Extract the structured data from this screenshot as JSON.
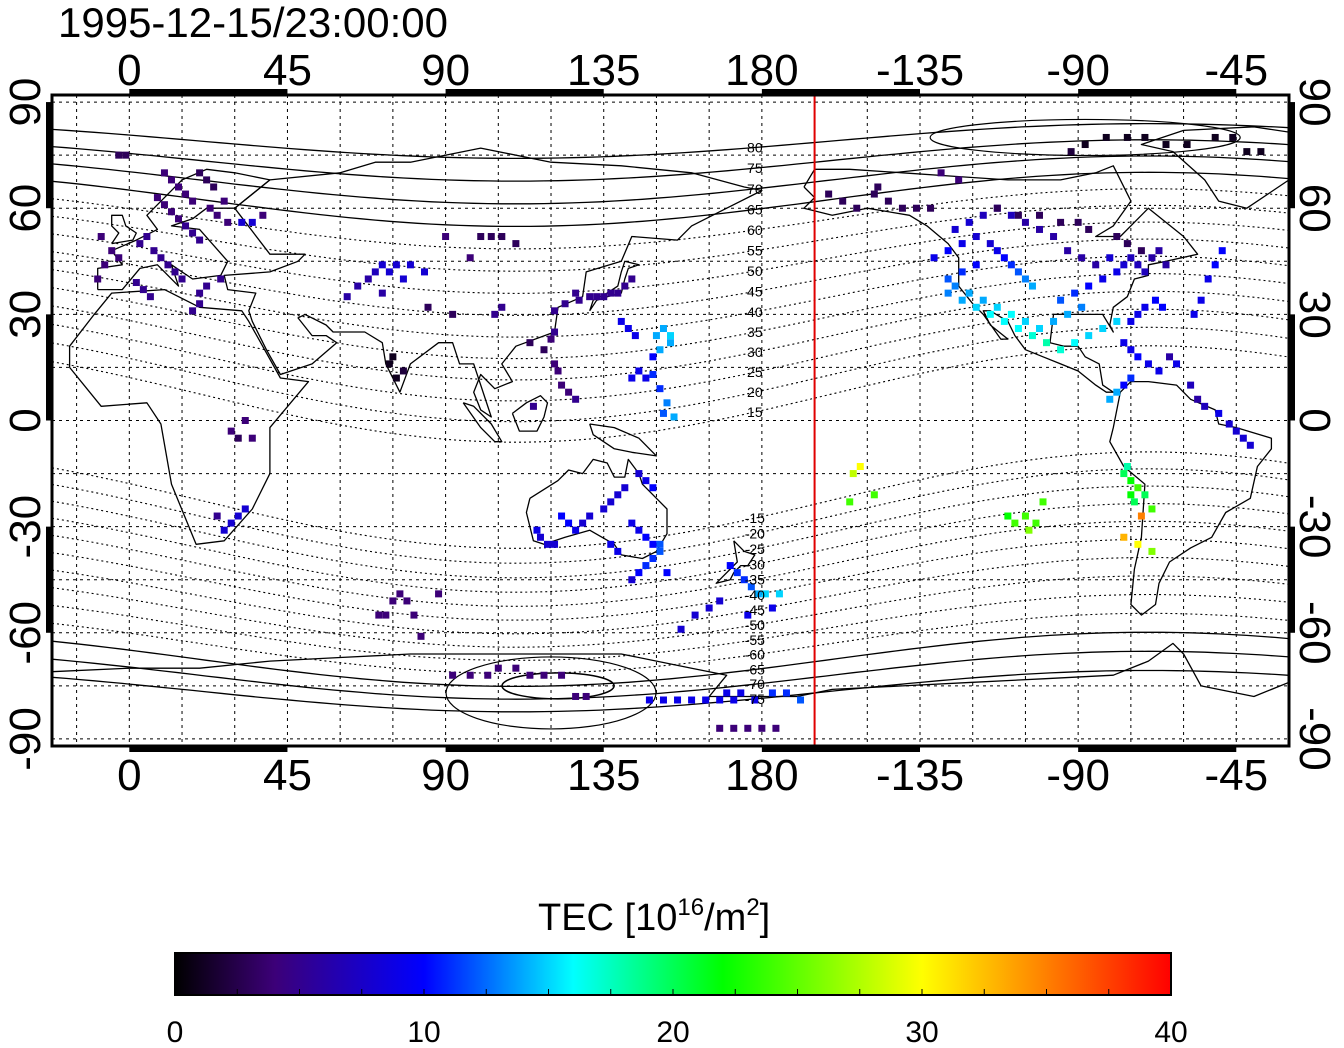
{
  "title": "1995-12-15/23:00:00",
  "map": {
    "lon_ticks_top": [
      "0",
      "45",
      "90",
      "135",
      "180",
      "-135",
      "-90",
      "-45"
    ],
    "lon_ticks_bottom": [
      "0",
      "45",
      "90",
      "135",
      "180",
      "-135",
      "-90",
      "-45"
    ],
    "lat_ticks_left": [
      "90",
      "60",
      "30",
      "0",
      "-30",
      "-60",
      "-90"
    ],
    "lat_ticks_right": [
      "90",
      "60",
      "30",
      "0",
      "-30",
      "-60",
      "-90"
    ],
    "lon_range": [
      -22,
      330
    ],
    "lat_range": [
      -92,
      92
    ],
    "grid_step_degrees": 15,
    "grid": true,
    "midnight_line_lon": 195,
    "midnight_line_color": "#e00000",
    "magnetic_latitude_labels_north": [
      "80",
      "75",
      "70",
      "65",
      "60",
      "55",
      "50",
      "45",
      "40",
      "35",
      "30",
      "25",
      "20",
      "15"
    ],
    "magnetic_latitude_labels_south": [
      "-15",
      "-20",
      "-25",
      "-30",
      "-35",
      "-40",
      "-45",
      "-50",
      "-55",
      "-60",
      "-65",
      "-70",
      "-75"
    ]
  },
  "colorbar": {
    "title_prefix": "TEC  [10",
    "title_sup1": "16",
    "title_mid": "/m",
    "title_sup2": "2",
    "title_suffix": "]",
    "min": 0,
    "max": 40,
    "tick_labels": [
      "0",
      "10",
      "20",
      "30",
      "40"
    ],
    "stops": [
      "#000000",
      "#3c0078",
      "#0000ff",
      "#00ffff",
      "#00ff00",
      "#ffff00",
      "#ff0000"
    ]
  },
  "chart_data": {
    "type": "scatter",
    "x_units": "longitude (degrees east, 0–360)",
    "y_units": "latitude (degrees)",
    "value_units": "TECU",
    "points": [
      [
        -3,
        75,
        3
      ],
      [
        -1,
        75,
        3
      ],
      [
        10,
        70,
        4
      ],
      [
        12,
        68,
        4
      ],
      [
        14,
        66,
        4
      ],
      [
        16,
        64,
        4
      ],
      [
        18,
        62,
        4
      ],
      [
        20,
        70,
        3
      ],
      [
        22,
        68,
        3
      ],
      [
        24,
        66,
        3
      ],
      [
        8,
        63,
        4
      ],
      [
        10,
        61,
        4
      ],
      [
        12,
        59,
        4
      ],
      [
        14,
        57,
        4
      ],
      [
        16,
        55,
        5
      ],
      [
        18,
        53,
        5
      ],
      [
        20,
        51,
        5
      ],
      [
        5,
        52,
        5
      ],
      [
        3,
        50,
        5
      ],
      [
        7,
        48,
        5
      ],
      [
        9,
        46,
        5
      ],
      [
        11,
        44,
        5
      ],
      [
        13,
        42,
        5
      ],
      [
        15,
        40,
        5
      ],
      [
        -5,
        48,
        4
      ],
      [
        -3,
        46,
        4
      ],
      [
        -7,
        44,
        4
      ],
      [
        -9,
        40,
        4
      ],
      [
        2,
        39,
        5
      ],
      [
        4,
        37,
        5
      ],
      [
        6,
        35,
        5
      ],
      [
        20,
        36,
        5
      ],
      [
        22,
        38,
        5
      ],
      [
        26,
        40,
        5
      ],
      [
        28,
        56,
        4
      ],
      [
        32,
        56,
        8
      ],
      [
        35,
        56,
        8
      ],
      [
        38,
        58,
        4
      ],
      [
        -8,
        52,
        4
      ],
      [
        23,
        60,
        4
      ],
      [
        25,
        58,
        4
      ],
      [
        27,
        62,
        4
      ],
      [
        20,
        33,
        5
      ],
      [
        18,
        31,
        5
      ],
      [
        68,
        40,
        6
      ],
      [
        70,
        42,
        7
      ],
      [
        72,
        44,
        8
      ],
      [
        74,
        42,
        8
      ],
      [
        76,
        44,
        8
      ],
      [
        78,
        40,
        8
      ],
      [
        80,
        44,
        8
      ],
      [
        84,
        42,
        8
      ],
      [
        62,
        35,
        6
      ],
      [
        65,
        38,
        6
      ],
      [
        72,
        36,
        6
      ],
      [
        100,
        52,
        3
      ],
      [
        103,
        52,
        3
      ],
      [
        106,
        52,
        3
      ],
      [
        110,
        50,
        3
      ],
      [
        97,
        46,
        4
      ],
      [
        90,
        52,
        4
      ],
      [
        85,
        32,
        3
      ],
      [
        92,
        30,
        3
      ],
      [
        75,
        18,
        1
      ],
      [
        76,
        12,
        1
      ],
      [
        78,
        14,
        2
      ],
      [
        74,
        16,
        1
      ],
      [
        121,
        31,
        5
      ],
      [
        124,
        33,
        5
      ],
      [
        127,
        36,
        5
      ],
      [
        128,
        34,
        5
      ],
      [
        131,
        35,
        5
      ],
      [
        133,
        35,
        5
      ],
      [
        135,
        35,
        5
      ],
      [
        137,
        36,
        5
      ],
      [
        139,
        36,
        5
      ],
      [
        141,
        38,
        5
      ],
      [
        143,
        40,
        5
      ],
      [
        120,
        23,
        4
      ],
      [
        121,
        25,
        5
      ],
      [
        121,
        16,
        4
      ],
      [
        122,
        14,
        4
      ],
      [
        123,
        10,
        4
      ],
      [
        125,
        8,
        4
      ],
      [
        127,
        6,
        5
      ],
      [
        115,
        4,
        5
      ],
      [
        104,
        30,
        5
      ],
      [
        106,
        32,
        5
      ],
      [
        118,
        20,
        3
      ],
      [
        114,
        22,
        3
      ],
      [
        140,
        28,
        9
      ],
      [
        142,
        26,
        9
      ],
      [
        144,
        24,
        9
      ],
      [
        145,
        14,
        9
      ],
      [
        143,
        12,
        9
      ],
      [
        147,
        12,
        9
      ],
      [
        149,
        18,
        10
      ],
      [
        151,
        20,
        14
      ],
      [
        150,
        24,
        14
      ],
      [
        152,
        26,
        14
      ],
      [
        154,
        24,
        15
      ],
      [
        154,
        22,
        14
      ],
      [
        149,
        13,
        11
      ],
      [
        151,
        9,
        11
      ],
      [
        153,
        5,
        13
      ],
      [
        155,
        1,
        14
      ],
      [
        152,
        2,
        12
      ],
      [
        145,
        -15,
        8
      ],
      [
        147,
        -17,
        9
      ],
      [
        149,
        -19,
        10
      ],
      [
        141,
        -19,
        8
      ],
      [
        139,
        -21,
        8
      ],
      [
        137,
        -23,
        8
      ],
      [
        135,
        -25,
        8
      ],
      [
        131,
        -27,
        8
      ],
      [
        129,
        -29,
        8
      ],
      [
        127,
        -31,
        9
      ],
      [
        125,
        -29,
        10
      ],
      [
        123,
        -27,
        10
      ],
      [
        143,
        -29,
        9
      ],
      [
        145,
        -31,
        9
      ],
      [
        147,
        -33,
        10
      ],
      [
        149,
        -35,
        10
      ],
      [
        151,
        -35,
        12
      ],
      [
        151,
        -37,
        12
      ],
      [
        149,
        -39,
        11
      ],
      [
        147,
        -41,
        11
      ],
      [
        145,
        -43,
        10
      ],
      [
        153,
        -43,
        10
      ],
      [
        117,
        -33,
        8
      ],
      [
        116,
        -31,
        9
      ],
      [
        119,
        -35,
        8
      ],
      [
        121,
        -35,
        8
      ],
      [
        137,
        -35,
        9
      ],
      [
        139,
        -37,
        9
      ],
      [
        143,
        -45,
        8
      ],
      [
        171,
        -41,
        10
      ],
      [
        173,
        -43,
        11
      ],
      [
        175,
        -45,
        11
      ],
      [
        177,
        -47,
        12
      ],
      [
        179,
        -49,
        14
      ],
      [
        181,
        -49,
        15
      ],
      [
        185,
        -49,
        15
      ],
      [
        168,
        -51,
        8
      ],
      [
        165,
        -53,
        8
      ],
      [
        161,
        -55,
        8
      ],
      [
        157,
        -59,
        8
      ],
      [
        183,
        -53,
        9
      ],
      [
        176,
        -55,
        9
      ],
      [
        75,
        -51,
        4
      ],
      [
        77,
        -49,
        4
      ],
      [
        79,
        -51,
        4
      ],
      [
        73,
        -55,
        4
      ],
      [
        71,
        -55,
        4
      ],
      [
        81,
        -55,
        4
      ],
      [
        83,
        -61,
        4
      ],
      [
        88,
        -49,
        4
      ],
      [
        33,
        -25,
        8
      ],
      [
        31,
        -27,
        8
      ],
      [
        29,
        -29,
        8
      ],
      [
        27,
        -31,
        8
      ],
      [
        25,
        -27,
        5
      ],
      [
        29,
        -3,
        4
      ],
      [
        33,
        0,
        4
      ],
      [
        31,
        -5,
        3
      ],
      [
        35,
        -5,
        4
      ],
      [
        92,
        -72,
        4
      ],
      [
        97,
        -72,
        4
      ],
      [
        102,
        -72,
        4
      ],
      [
        105,
        -70,
        4
      ],
      [
        110,
        -70,
        4
      ],
      [
        114,
        -72,
        4
      ],
      [
        118,
        -72,
        4
      ],
      [
        123,
        -72,
        4
      ],
      [
        127,
        -78,
        4
      ],
      [
        130,
        -78,
        4
      ],
      [
        148,
        -79,
        9
      ],
      [
        152,
        -79,
        9
      ],
      [
        156,
        -79,
        9
      ],
      [
        160,
        -79,
        9
      ],
      [
        164,
        -79,
        9
      ],
      [
        168,
        -79,
        9
      ],
      [
        172,
        -79,
        9
      ],
      [
        178,
        -79,
        9
      ],
      [
        183,
        -77,
        11
      ],
      [
        187,
        -77,
        11
      ],
      [
        191,
        -79,
        12
      ],
      [
        168,
        -87,
        4
      ],
      [
        172,
        -87,
        4
      ],
      [
        176,
        -87,
        4
      ],
      [
        180,
        -87,
        4
      ],
      [
        184,
        -87,
        4
      ],
      [
        170,
        -77,
        9
      ],
      [
        174,
        -77,
        9
      ],
      [
        206,
        -15,
        28
      ],
      [
        208,
        -13,
        30
      ],
      [
        205,
        -23,
        24
      ],
      [
        212,
        -21,
        24
      ],
      [
        260,
        -23,
        24
      ],
      [
        258,
        -29,
        24
      ],
      [
        255,
        -27,
        24
      ],
      [
        252,
        -29,
        24
      ],
      [
        256,
        -31,
        26
      ],
      [
        250,
        -27,
        22
      ],
      [
        283,
        -15,
        20
      ],
      [
        285,
        -17,
        22
      ],
      [
        287,
        -19,
        24
      ],
      [
        285,
        -21,
        22
      ],
      [
        289,
        -21,
        20
      ],
      [
        291,
        -25,
        24
      ],
      [
        288,
        -27,
        35
      ],
      [
        283,
        -33,
        33
      ],
      [
        287,
        -35,
        30
      ],
      [
        291,
        -37,
        26
      ],
      [
        284,
        -13,
        18
      ],
      [
        286,
        -23,
        20
      ],
      [
        245,
        50,
        8
      ],
      [
        247,
        48,
        9
      ],
      [
        249,
        46,
        10
      ],
      [
        251,
        44,
        11
      ],
      [
        253,
        42,
        12
      ],
      [
        255,
        40,
        13
      ],
      [
        257,
        38,
        14
      ],
      [
        241,
        44,
        10
      ],
      [
        237,
        42,
        11
      ],
      [
        233,
        40,
        12
      ],
      [
        235,
        38,
        13
      ],
      [
        239,
        36,
        14
      ],
      [
        243,
        34,
        14
      ],
      [
        247,
        32,
        15
      ],
      [
        251,
        30,
        16
      ],
      [
        255,
        28,
        15
      ],
      [
        259,
        26,
        15
      ],
      [
        263,
        28,
        14
      ],
      [
        267,
        30,
        14
      ],
      [
        271,
        32,
        13
      ],
      [
        265,
        34,
        12
      ],
      [
        269,
        36,
        11
      ],
      [
        273,
        38,
        10
      ],
      [
        277,
        40,
        9
      ],
      [
        281,
        42,
        9
      ],
      [
        283,
        44,
        8
      ],
      [
        279,
        46,
        8
      ],
      [
        285,
        46,
        7
      ],
      [
        287,
        44,
        7
      ],
      [
        289,
        42,
        7
      ],
      [
        291,
        46,
        6
      ],
      [
        293,
        48,
        6
      ],
      [
        295,
        44,
        6
      ],
      [
        241,
        52,
        8
      ],
      [
        237,
        50,
        9
      ],
      [
        233,
        48,
        10
      ],
      [
        229,
        46,
        9
      ],
      [
        235,
        54,
        8
      ],
      [
        239,
        56,
        8
      ],
      [
        243,
        58,
        7
      ],
      [
        247,
        60,
        6
      ],
      [
        251,
        58,
        7
      ],
      [
        255,
        56,
        6
      ],
      [
        259,
        54,
        6
      ],
      [
        263,
        52,
        6
      ],
      [
        267,
        48,
        6
      ],
      [
        271,
        46,
        6
      ],
      [
        275,
        44,
        6
      ],
      [
        233,
        36,
        13
      ],
      [
        237,
        34,
        14
      ],
      [
        241,
        32,
        15
      ],
      [
        245,
        30,
        16
      ],
      [
        249,
        28,
        16
      ],
      [
        253,
        26,
        16
      ],
      [
        257,
        24,
        17
      ],
      [
        261,
        22,
        18
      ],
      [
        265,
        20,
        17
      ],
      [
        269,
        22,
        16
      ],
      [
        273,
        24,
        15
      ],
      [
        277,
        26,
        15
      ],
      [
        281,
        28,
        15
      ],
      [
        285,
        28,
        9
      ],
      [
        287,
        30,
        9
      ],
      [
        289,
        32,
        9
      ],
      [
        292,
        34,
        10
      ],
      [
        294,
        32,
        10
      ],
      [
        283,
        22,
        9
      ],
      [
        285,
        20,
        9
      ],
      [
        287,
        18,
        10
      ],
      [
        290,
        16,
        9
      ],
      [
        293,
        14,
        9
      ],
      [
        283,
        10,
        10
      ],
      [
        285,
        12,
        11
      ],
      [
        281,
        8,
        14
      ],
      [
        279,
        6,
        14
      ],
      [
        296,
        18,
        6
      ],
      [
        298,
        16,
        9
      ],
      [
        302,
        10,
        7
      ],
      [
        304,
        6,
        6
      ],
      [
        306,
        4,
        7
      ],
      [
        310,
        2,
        9
      ],
      [
        313,
        -1,
        8
      ],
      [
        315,
        -3,
        8
      ],
      [
        317,
        -5,
        8
      ],
      [
        319,
        -7,
        8
      ],
      [
        303,
        30,
        9
      ],
      [
        305,
        34,
        9
      ],
      [
        307,
        40,
        9
      ],
      [
        309,
        44,
        10
      ],
      [
        311,
        48,
        10
      ],
      [
        212,
        64,
        3
      ],
      [
        216,
        62,
        3
      ],
      [
        220,
        60,
        3
      ],
      [
        224,
        60,
        3
      ],
      [
        228,
        60,
        3
      ],
      [
        203,
        62,
        3
      ],
      [
        199,
        64,
        3
      ],
      [
        213,
        66,
        3
      ],
      [
        207,
        60,
        3
      ],
      [
        247,
        60,
        3
      ],
      [
        253,
        58,
        3
      ],
      [
        259,
        58,
        3
      ],
      [
        265,
        56,
        3
      ],
      [
        270,
        56,
        3
      ],
      [
        273,
        54,
        3
      ],
      [
        281,
        52,
        3
      ],
      [
        284,
        50,
        3
      ],
      [
        288,
        48,
        3
      ],
      [
        236,
        68,
        4
      ],
      [
        231,
        70,
        4
      ],
      [
        268,
        76,
        2
      ],
      [
        272,
        78,
        1
      ],
      [
        278,
        80,
        1
      ],
      [
        284,
        80,
        1
      ],
      [
        289,
        80,
        1
      ],
      [
        295,
        78,
        1
      ],
      [
        301,
        78,
        1
      ],
      [
        309,
        80,
        1
      ],
      [
        314,
        80,
        1
      ],
      [
        318,
        76,
        1
      ],
      [
        322,
        76,
        1
      ]
    ]
  }
}
